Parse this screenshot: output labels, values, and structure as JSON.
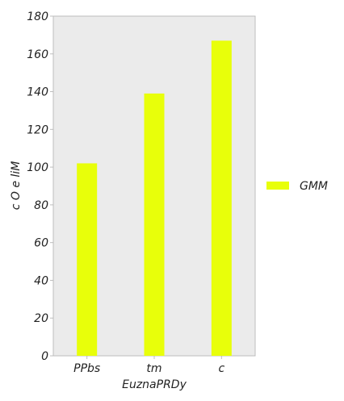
{
  "chart_data": {
    "type": "bar",
    "title": "",
    "xlabel": "EuznaPRDy",
    "ylabel": "c O e liM",
    "categories": [
      "PPbs",
      "tm",
      "c"
    ],
    "series": [
      {
        "name": "GMM",
        "values": [
          102,
          139,
          167
        ],
        "color": "#e8ff0a"
      }
    ],
    "ylim": [
      0,
      180
    ],
    "yticks": [
      0,
      20,
      40,
      60,
      80,
      100,
      120,
      140,
      160,
      180
    ],
    "grid": false,
    "legend_position": "right",
    "plot_background": "#ebebeb",
    "frame_color": "#bdbdbd"
  }
}
